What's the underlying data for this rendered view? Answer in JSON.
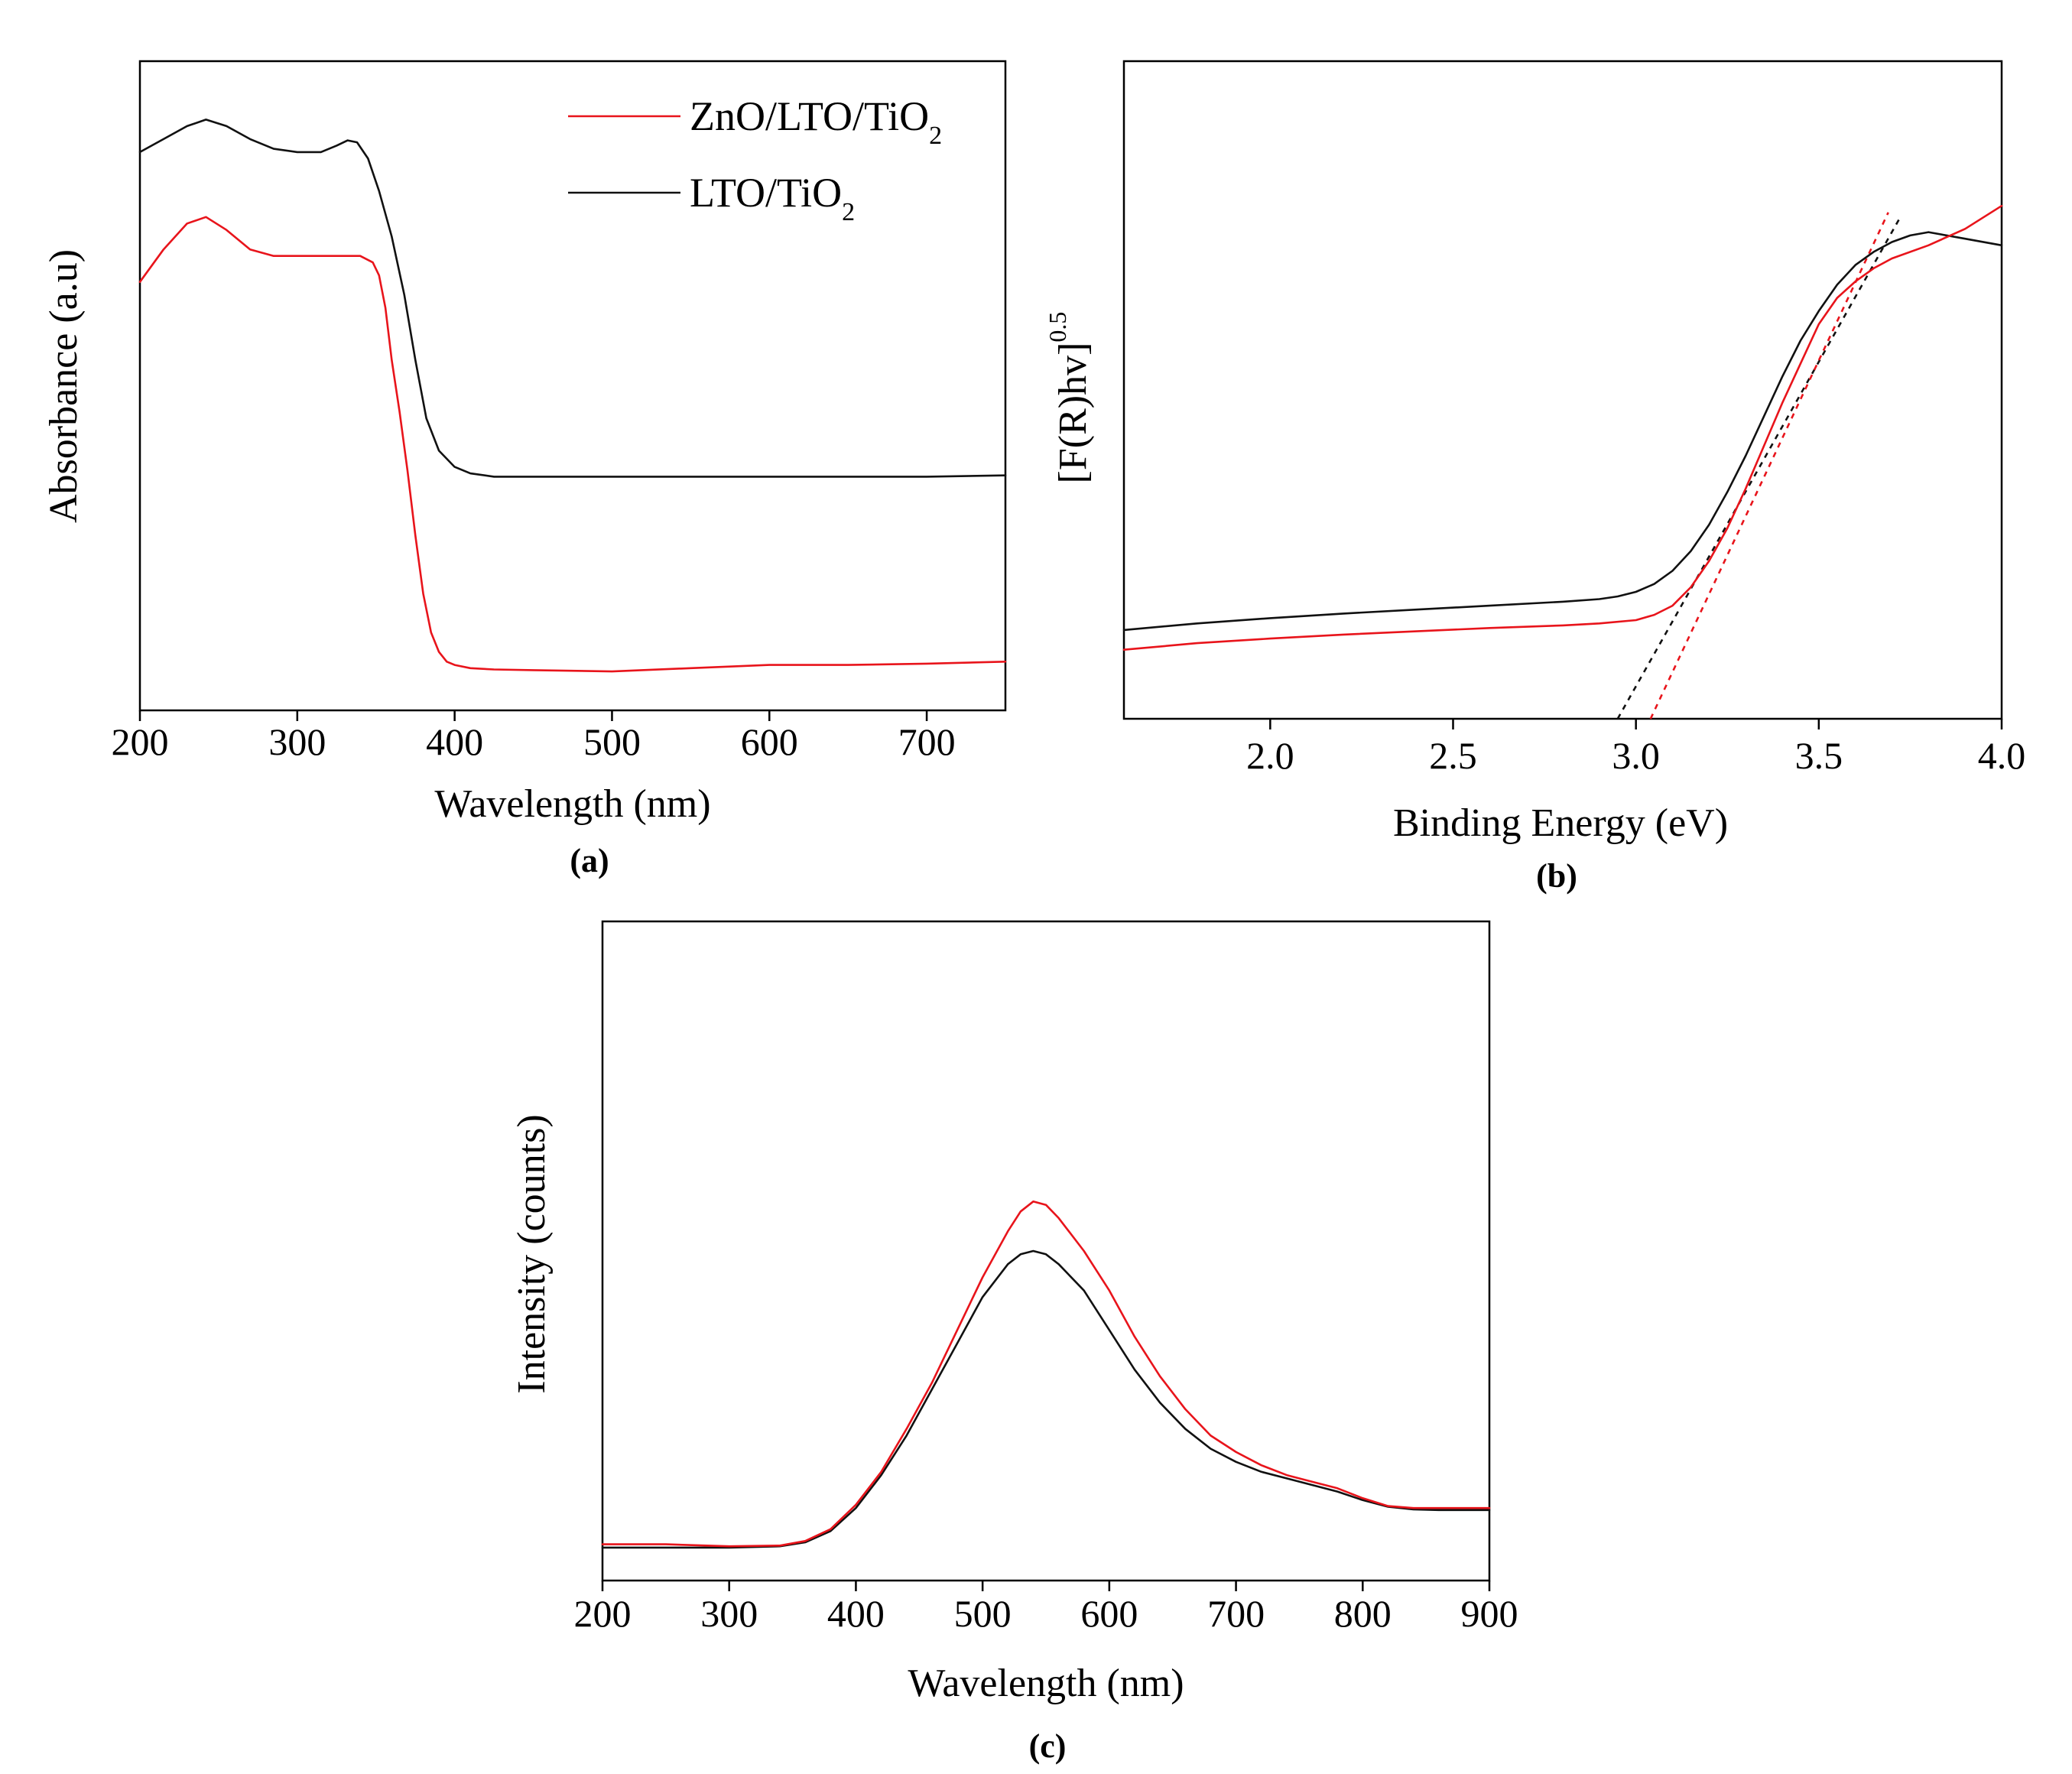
{
  "colors": {
    "zno": "#e8141b",
    "lto": "#111111"
  },
  "chart_data": [
    {
      "type": "line",
      "panel": "(a)",
      "xlabel": "Wavelength (nm)",
      "ylabel": "Absorbance (a.u)",
      "xlim": [
        200,
        750
      ],
      "ylim": [
        0,
        1
      ],
      "xticks": [
        "200",
        "300",
        "400",
        "500",
        "600",
        "700"
      ],
      "legend": [
        {
          "name": "ZnO/LTO/TiO",
          "sub": "2",
          "color": "#e8141b"
        },
        {
          "name": "LTO/TiO",
          "sub": "2",
          "color": "#111111"
        }
      ],
      "series": [
        {
          "name": "LTO/TiO2",
          "color": "#111111",
          "x": [
            200,
            215,
            230,
            242,
            255,
            270,
            285,
            300,
            315,
            325,
            332,
            338,
            345,
            352,
            360,
            368,
            375,
            382,
            390,
            400,
            410,
            425,
            450,
            500,
            550,
            600,
            650,
            700,
            750
          ],
          "y": [
            0.86,
            0.88,
            0.9,
            0.91,
            0.9,
            0.88,
            0.865,
            0.86,
            0.86,
            0.87,
            0.878,
            0.875,
            0.85,
            0.8,
            0.73,
            0.64,
            0.54,
            0.45,
            0.4,
            0.375,
            0.365,
            0.36,
            0.36,
            0.36,
            0.36,
            0.36,
            0.36,
            0.36,
            0.362
          ]
        },
        {
          "name": "ZnO/LTO/TiO2",
          "color": "#e8141b",
          "x": [
            200,
            215,
            230,
            242,
            255,
            270,
            285,
            300,
            320,
            340,
            348,
            352,
            356,
            360,
            365,
            370,
            375,
            380,
            385,
            390,
            395,
            400,
            410,
            425,
            450,
            500,
            550,
            600,
            650,
            700,
            750
          ],
          "y": [
            0.66,
            0.71,
            0.75,
            0.76,
            0.74,
            0.71,
            0.7,
            0.7,
            0.7,
            0.7,
            0.69,
            0.67,
            0.62,
            0.54,
            0.46,
            0.37,
            0.27,
            0.18,
            0.12,
            0.09,
            0.075,
            0.07,
            0.065,
            0.063,
            0.062,
            0.06,
            0.065,
            0.07,
            0.07,
            0.072,
            0.075
          ]
        }
      ]
    },
    {
      "type": "line",
      "panel": "(b)",
      "xlabel": "Binding Energy (eV)",
      "ylabel_main": "[F(R)hv]",
      "ylabel_sup": "0.5",
      "xlim": [
        1.6,
        4.0
      ],
      "ylim": [
        0,
        1
      ],
      "xticks": [
        "2.0",
        "2.5",
        "3.0",
        "3.5",
        "4.0"
      ],
      "series": [
        {
          "name": "LTO/TiO2",
          "color": "#111111",
          "x": [
            1.6,
            1.8,
            2.0,
            2.2,
            2.4,
            2.6,
            2.8,
            2.9,
            2.95,
            3.0,
            3.05,
            3.1,
            3.15,
            3.2,
            3.25,
            3.3,
            3.35,
            3.4,
            3.45,
            3.5,
            3.55,
            3.6,
            3.65,
            3.7,
            3.75,
            3.8,
            3.9,
            4.0
          ],
          "y": [
            0.135,
            0.145,
            0.153,
            0.16,
            0.166,
            0.172,
            0.178,
            0.182,
            0.186,
            0.193,
            0.205,
            0.225,
            0.255,
            0.295,
            0.345,
            0.4,
            0.46,
            0.52,
            0.575,
            0.62,
            0.66,
            0.69,
            0.71,
            0.725,
            0.735,
            0.74,
            0.73,
            0.72
          ]
        },
        {
          "name": "ZnO/LTO/TiO2",
          "color": "#e8141b",
          "x": [
            1.6,
            1.8,
            2.0,
            2.2,
            2.4,
            2.6,
            2.8,
            2.9,
            3.0,
            3.05,
            3.1,
            3.15,
            3.2,
            3.25,
            3.3,
            3.35,
            3.4,
            3.45,
            3.5,
            3.55,
            3.6,
            3.65,
            3.7,
            3.8,
            3.9,
            4.0
          ],
          "y": [
            0.105,
            0.115,
            0.122,
            0.128,
            0.133,
            0.138,
            0.142,
            0.145,
            0.15,
            0.158,
            0.172,
            0.2,
            0.24,
            0.29,
            0.35,
            0.415,
            0.48,
            0.54,
            0.6,
            0.64,
            0.665,
            0.685,
            0.7,
            0.72,
            0.745,
            0.78
          ]
        }
      ],
      "fits": [
        {
          "name": "LTO/TiO2 tangent",
          "color": "#111111",
          "x": [
            2.95,
            3.72
          ],
          "y": [
            0.0,
            0.76
          ]
        },
        {
          "name": "ZnO/LTO/TiO2 tangent",
          "color": "#e8141b",
          "x": [
            3.04,
            3.69
          ],
          "y": [
            0.0,
            0.77
          ]
        }
      ]
    },
    {
      "type": "line",
      "panel": "(c)",
      "xlabel": "Wavelength (nm)",
      "ylabel": "Intensity (counts)",
      "xlim": [
        200,
        900
      ],
      "ylim": [
        0,
        1
      ],
      "xticks": [
        "200",
        "300",
        "400",
        "500",
        "600",
        "700",
        "800",
        "900"
      ],
      "series": [
        {
          "name": "LTO/TiO2",
          "color": "#111111",
          "x": [
            200,
            250,
            300,
            340,
            360,
            380,
            400,
            420,
            440,
            460,
            480,
            500,
            520,
            530,
            540,
            550,
            560,
            580,
            600,
            620,
            640,
            660,
            680,
            700,
            720,
            740,
            760,
            780,
            800,
            820,
            840,
            860,
            900
          ],
          "y": [
            0.05,
            0.05,
            0.05,
            0.052,
            0.058,
            0.075,
            0.11,
            0.16,
            0.22,
            0.29,
            0.36,
            0.43,
            0.48,
            0.495,
            0.5,
            0.495,
            0.48,
            0.44,
            0.38,
            0.32,
            0.27,
            0.23,
            0.2,
            0.18,
            0.165,
            0.155,
            0.145,
            0.135,
            0.122,
            0.112,
            0.108,
            0.107,
            0.107
          ]
        },
        {
          "name": "ZnO/LTO/TiO2",
          "color": "#e8141b",
          "x": [
            200,
            250,
            300,
            340,
            360,
            380,
            400,
            420,
            440,
            460,
            480,
            500,
            520,
            530,
            540,
            550,
            560,
            580,
            600,
            620,
            640,
            660,
            680,
            700,
            720,
            740,
            760,
            780,
            800,
            820,
            840,
            860,
            900
          ],
          "y": [
            0.055,
            0.055,
            0.052,
            0.053,
            0.06,
            0.078,
            0.115,
            0.165,
            0.23,
            0.3,
            0.38,
            0.46,
            0.53,
            0.56,
            0.575,
            0.57,
            0.55,
            0.5,
            0.44,
            0.37,
            0.31,
            0.26,
            0.22,
            0.195,
            0.175,
            0.16,
            0.15,
            0.14,
            0.125,
            0.113,
            0.11,
            0.11,
            0.11
          ]
        }
      ]
    }
  ]
}
